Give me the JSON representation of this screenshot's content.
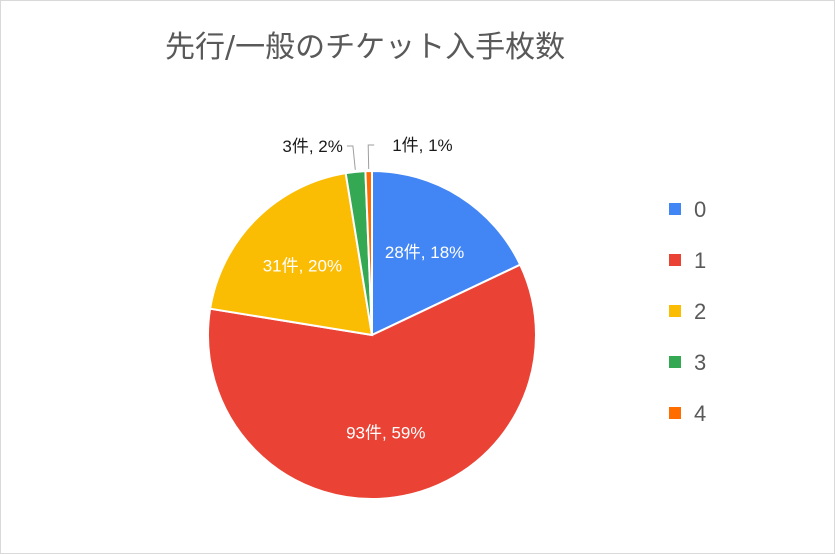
{
  "chart_data": {
    "type": "pie",
    "title": "先行/一般のチケット入手枚数",
    "categories": [
      "0",
      "1",
      "2",
      "3",
      "4"
    ],
    "values": [
      28,
      93,
      31,
      3,
      1
    ],
    "percents": [
      18,
      59,
      20,
      2,
      1
    ],
    "data_labels": [
      "28件, 18%",
      "93件, 59%",
      "31件, 20%",
      "3件, 2%",
      "1件, 1%"
    ],
    "colors": [
      "#4285f4",
      "#ea4335",
      "#fbbc04",
      "#34a853",
      "#ff6d01"
    ],
    "legend": {
      "position": "right",
      "items": [
        "0",
        "1",
        "2",
        "3",
        "4"
      ]
    }
  }
}
